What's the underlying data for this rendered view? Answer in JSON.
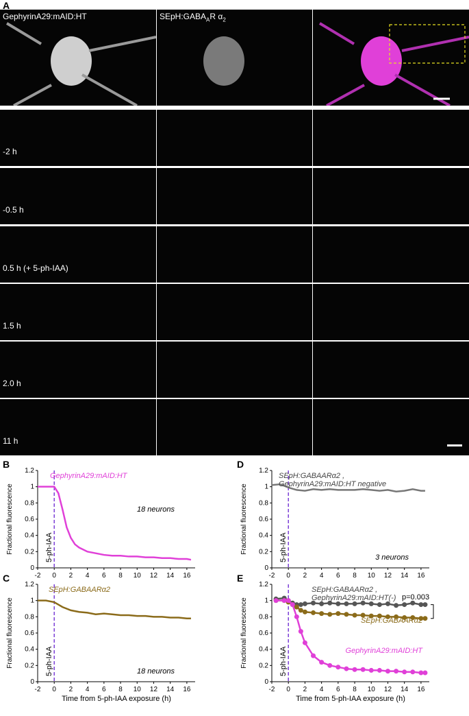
{
  "panel_labels": {
    "A": "A",
    "B": "B",
    "C": "C",
    "D": "D",
    "E": "E"
  },
  "microscopy": {
    "col_titles": [
      "GephyrinA29:mAID:HT",
      "SEpH:GABA",
      "A",
      "R α",
      "2"
    ],
    "time_labels": [
      "-2 h",
      "-0.5 h",
      "0.5 h (+ 5-ph-IAA)",
      "1.5 h",
      "2.0 h",
      "11 h"
    ]
  },
  "colors": {
    "magenta": "#e040d8",
    "yellow": "#d8d060",
    "olive": "#8b6b1a",
    "dark_gray": "#555555",
    "purple_dash": "#7b3fd6"
  },
  "chart_data": [
    {
      "type": "line",
      "panel": "B",
      "ylabel": "Fractional fluorescence",
      "xlabel": "",
      "annotation": "GephyrinA29:mAID:HT",
      "note": "18 neurons",
      "vline_label": "5-ph-IAA",
      "xlim": [
        -2,
        17
      ],
      "ylim": [
        0,
        1.2
      ],
      "xticks": [
        -2,
        0,
        2,
        4,
        6,
        8,
        10,
        12,
        14,
        16
      ],
      "yticks": [
        0,
        0.2,
        0.4,
        0.6,
        0.8,
        1,
        1.2
      ],
      "x": [
        -2,
        -1,
        0,
        0.5,
        1,
        1.5,
        2,
        2.5,
        3,
        4,
        5,
        6,
        7,
        8,
        9,
        10,
        11,
        12,
        13,
        14,
        15,
        16,
        16.5
      ],
      "series": [
        {
          "name": "mean",
          "values": [
            1.0,
            1.0,
            1.0,
            0.92,
            0.72,
            0.5,
            0.37,
            0.29,
            0.25,
            0.2,
            0.18,
            0.16,
            0.15,
            0.15,
            0.14,
            0.14,
            0.13,
            0.13,
            0.12,
            0.12,
            0.11,
            0.11,
            0.1
          ]
        }
      ]
    },
    {
      "type": "line",
      "panel": "C",
      "ylabel": "Fractional fluorescence",
      "xlabel": "Time from 5-ph-IAA exposure (h)",
      "annotation": "SEpH:GABAARα2",
      "note": "18 neurons",
      "vline_label": "5-ph-IAA",
      "xlim": [
        -2,
        17
      ],
      "ylim": [
        0,
        1.2
      ],
      "xticks": [
        -2,
        0,
        2,
        4,
        6,
        8,
        10,
        12,
        14,
        16
      ],
      "yticks": [
        0,
        0.2,
        0.4,
        0.6,
        0.8,
        1,
        1.2
      ],
      "x": [
        -2,
        -1,
        0,
        0.5,
        1,
        2,
        3,
        4,
        5,
        6,
        7,
        8,
        9,
        10,
        11,
        12,
        13,
        14,
        15,
        16,
        16.5
      ],
      "series": [
        {
          "name": "mean",
          "values": [
            1.0,
            1.0,
            0.98,
            0.95,
            0.92,
            0.88,
            0.86,
            0.85,
            0.83,
            0.84,
            0.83,
            0.82,
            0.82,
            0.81,
            0.81,
            0.8,
            0.8,
            0.79,
            0.79,
            0.78,
            0.78
          ]
        }
      ]
    },
    {
      "type": "line",
      "panel": "D",
      "ylabel": "Fractional fluorescence",
      "xlabel": "",
      "annotation_1": "SEpH:GABAARα2 ,",
      "annotation_2": "GephyrinA29:mAID:HT negative",
      "note": "3 neurons",
      "vline_label": "5-ph-IAA",
      "xlim": [
        -2,
        17
      ],
      "ylim": [
        0,
        1.2
      ],
      "xticks": [
        -2,
        0,
        2,
        4,
        6,
        8,
        10,
        12,
        14,
        16
      ],
      "yticks": [
        0,
        0.2,
        0.4,
        0.6,
        0.8,
        1,
        1.2
      ],
      "x": [
        -2,
        -1,
        0,
        1,
        2,
        3,
        4,
        5,
        6,
        7,
        8,
        9,
        10,
        11,
        12,
        13,
        14,
        15,
        16,
        16.5
      ],
      "series": [
        {
          "name": "mean",
          "values": [
            1.02,
            1.03,
            0.99,
            0.96,
            0.95,
            0.97,
            0.96,
            0.97,
            0.96,
            0.96,
            0.96,
            0.97,
            0.96,
            0.95,
            0.96,
            0.94,
            0.95,
            0.97,
            0.95,
            0.95
          ]
        }
      ]
    },
    {
      "type": "line",
      "panel": "E",
      "ylabel": "Fractional fluorescence",
      "xlabel": "Time from 5-ph-IAA exposure (h)",
      "annotation_gray_1": "SEpH:GABAARα2 ,",
      "annotation_gray_2": "GephyrinA29:mAID:HT(-)",
      "annotation_olive": "SEpH:GABAARα2",
      "annotation_magenta": "GephyrinA29:mAID:HT",
      "pvalue": "p=0.003",
      "vline_label": "5-ph-IAA",
      "xlim": [
        -2,
        17
      ],
      "ylim": [
        0,
        1.2
      ],
      "xticks": [
        -2,
        0,
        2,
        4,
        6,
        8,
        10,
        12,
        14,
        16
      ],
      "yticks": [
        0,
        0.2,
        0.4,
        0.6,
        0.8,
        1,
        1.2
      ],
      "x": [
        -1.5,
        -0.5,
        0,
        0.5,
        1,
        1.5,
        2,
        3,
        4,
        5,
        6,
        7,
        8,
        9,
        10,
        11,
        12,
        13,
        14,
        15,
        16,
        16.5
      ],
      "series": [
        {
          "name": "gray",
          "values": [
            1.02,
            1.03,
            1.0,
            0.97,
            0.95,
            0.95,
            0.96,
            0.97,
            0.96,
            0.97,
            0.96,
            0.96,
            0.96,
            0.97,
            0.96,
            0.95,
            0.96,
            0.94,
            0.95,
            0.97,
            0.95,
            0.95
          ]
        },
        {
          "name": "olive",
          "values": [
            1.0,
            1.0,
            0.98,
            0.95,
            0.92,
            0.88,
            0.86,
            0.85,
            0.84,
            0.83,
            0.84,
            0.83,
            0.82,
            0.82,
            0.81,
            0.81,
            0.8,
            0.8,
            0.79,
            0.79,
            0.78,
            0.78
          ]
        },
        {
          "name": "magenta",
          "values": [
            1.0,
            1.0,
            1.0,
            0.95,
            0.8,
            0.62,
            0.48,
            0.32,
            0.24,
            0.2,
            0.18,
            0.16,
            0.15,
            0.15,
            0.14,
            0.14,
            0.13,
            0.13,
            0.12,
            0.12,
            0.11,
            0.11
          ]
        }
      ]
    }
  ]
}
